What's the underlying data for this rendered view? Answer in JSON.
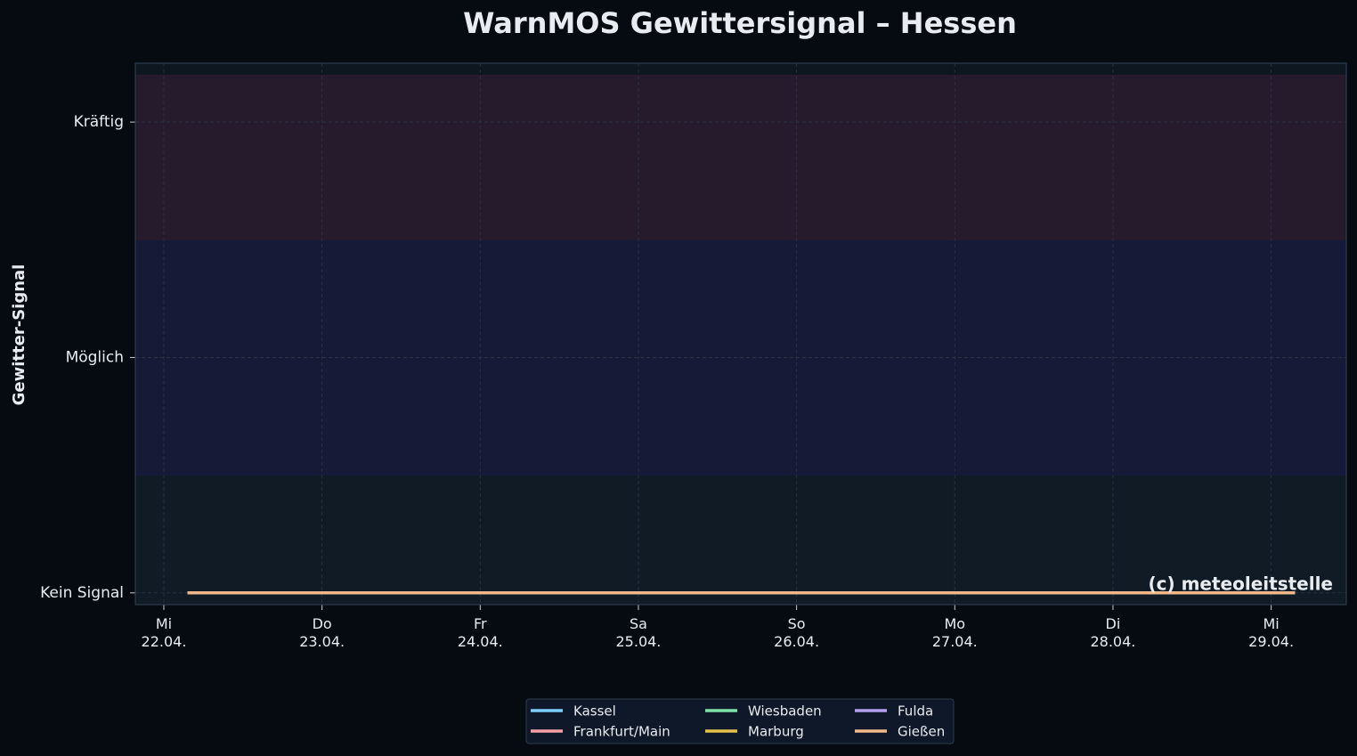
{
  "chart_data": {
    "type": "line",
    "title": "WarnMOS Gewittersignal – Hessen",
    "y_label": "Gewitter-Signal",
    "watermark": "(c) meteoleitstelle",
    "x": [
      0.15,
      0.65,
      1.15,
      1.65,
      2.15,
      2.65,
      3.15,
      3.65,
      4.15,
      4.65,
      5.15,
      5.65,
      6.15,
      6.65,
      7.15
    ],
    "xlim": [
      -0.18,
      7.475
    ],
    "xticks": [
      {
        "value": 0,
        "label": "Mi\n22.04."
      },
      {
        "value": 1,
        "label": "Do\n23.04."
      },
      {
        "value": 2,
        "label": "Fr\n24.04."
      },
      {
        "value": 3,
        "label": "Sa\n25.04."
      },
      {
        "value": 4,
        "label": "So\n26.04."
      },
      {
        "value": 5,
        "label": "Mo\n27.04."
      },
      {
        "value": 6,
        "label": "Di\n28.04."
      },
      {
        "value": 7,
        "label": "Mi\n29.04."
      }
    ],
    "ylim": [
      -0.05,
      2.25
    ],
    "yticks": [
      {
        "value": 0,
        "label": "Kein Signal"
      },
      {
        "value": 1,
        "label": "Möglich"
      },
      {
        "value": 2,
        "label": "Kräftig"
      }
    ],
    "bands": [
      {
        "from": -0.05,
        "to": 0.5,
        "color": "#111b26"
      },
      {
        "from": 0.5,
        "to": 1.5,
        "color": "#171a36"
      },
      {
        "from": 1.5,
        "to": 2.2,
        "color": "#261b2c"
      }
    ],
    "grid": true,
    "legend_position": "bottom",
    "legend_columns": 3,
    "series": [
      {
        "name": "Kassel",
        "color": "#7dcfff",
        "values": [
          0,
          0,
          0,
          0,
          0,
          0,
          0,
          0,
          0,
          0,
          0,
          0,
          0,
          0,
          0
        ]
      },
      {
        "name": "Frankfurt/Main",
        "color": "#f7a0a8",
        "values": [
          0,
          0,
          0,
          0,
          0,
          0,
          0,
          0,
          0,
          0,
          0,
          0,
          0,
          0,
          0
        ]
      },
      {
        "name": "Wiesbaden",
        "color": "#7ee2a8",
        "values": [
          0,
          0,
          0,
          0,
          0,
          0,
          0,
          0,
          0,
          0,
          0,
          0,
          0,
          0,
          0
        ]
      },
      {
        "name": "Marburg",
        "color": "#e6c04a",
        "values": [
          0,
          0,
          0,
          0,
          0,
          0,
          0,
          0,
          0,
          0,
          0,
          0,
          0,
          0,
          0
        ]
      },
      {
        "name": "Fulda",
        "color": "#b4a0f0",
        "values": [
          0,
          0,
          0,
          0,
          0,
          0,
          0,
          0,
          0,
          0,
          0,
          0,
          0,
          0,
          0
        ]
      },
      {
        "name": "Gießen",
        "color": "#f2b889",
        "values": [
          0,
          0,
          0,
          0,
          0,
          0,
          0,
          0,
          0,
          0,
          0,
          0,
          0,
          0,
          0
        ]
      }
    ]
  }
}
